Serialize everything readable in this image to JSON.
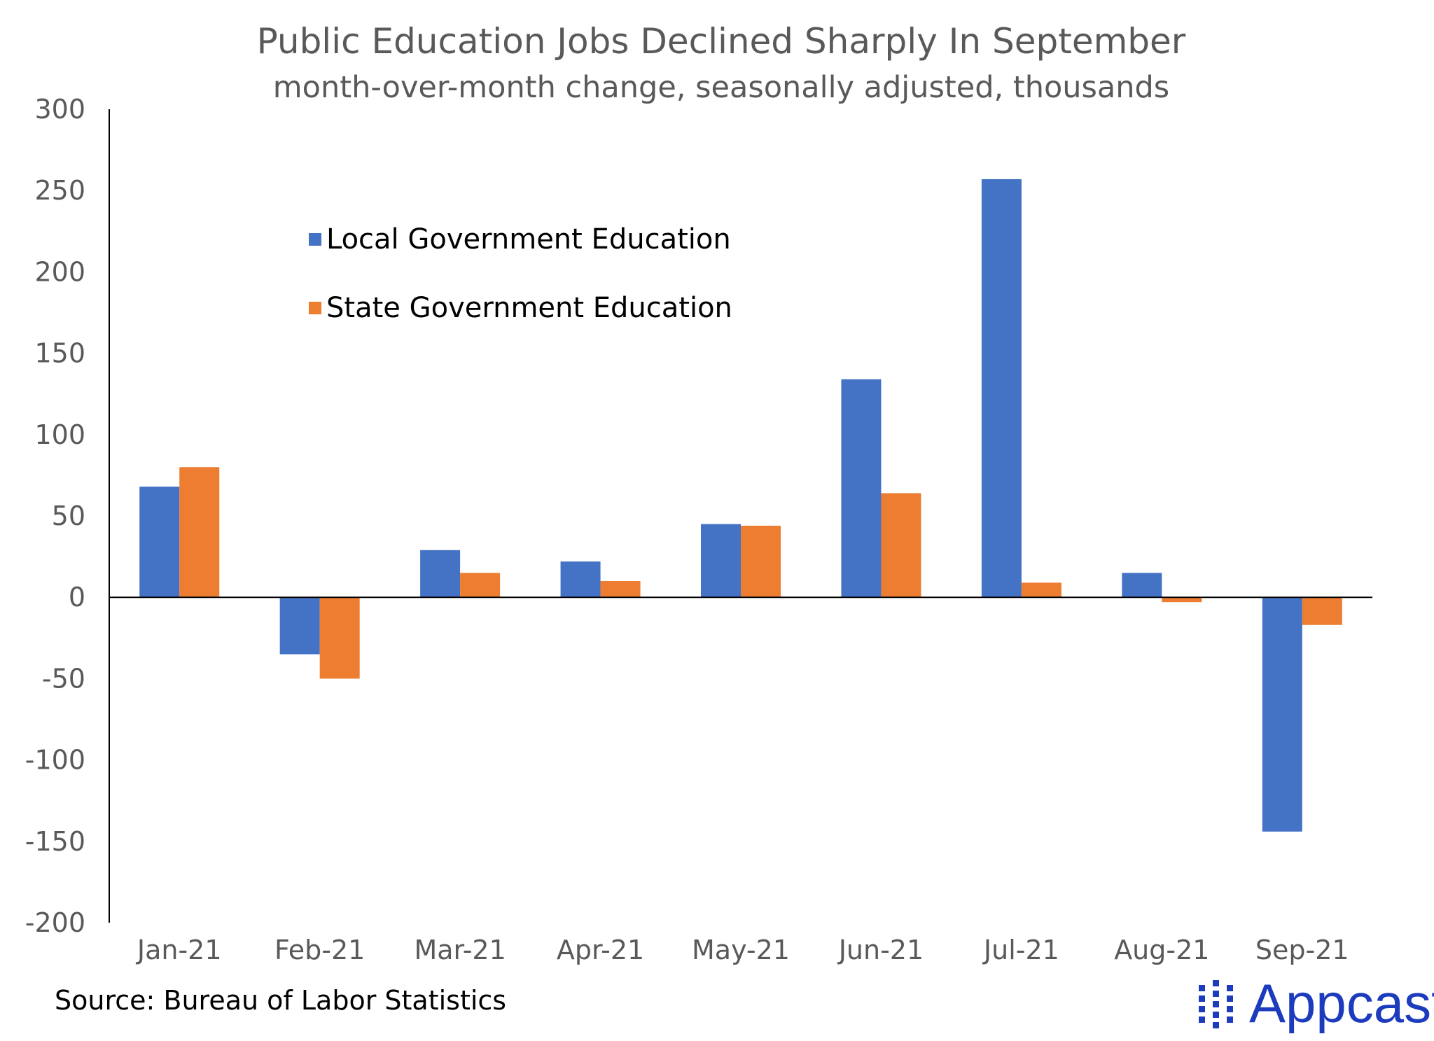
{
  "chart_data": {
    "type": "bar",
    "title": "Public Education Jobs Declined Sharply In September",
    "subtitle": "month-over-month change, seasonally adjusted, thousands",
    "categories": [
      "Jan-21",
      "Feb-21",
      "Mar-21",
      "Apr-21",
      "May-21",
      "Jun-21",
      "Jul-21",
      "Aug-21",
      "Sep-21"
    ],
    "series": [
      {
        "name": "Local Government Education",
        "color": "#4472c4",
        "values": [
          68,
          -35,
          29,
          22,
          45,
          134,
          257,
          15,
          -144
        ]
      },
      {
        "name": "State Government Education",
        "color": "#ed7d31",
        "values": [
          80,
          -50,
          15,
          10,
          44,
          64,
          9,
          -3,
          -17
        ]
      }
    ],
    "ylim": [
      -200,
      300
    ],
    "yticks": [
      "300",
      "250",
      "200",
      "150",
      "100",
      "50",
      "0",
      "-50",
      "-100",
      "-150",
      "-200"
    ],
    "ytick_values": [
      300,
      250,
      200,
      150,
      100,
      50,
      0,
      -50,
      -100,
      -150,
      -200
    ],
    "grid": false,
    "legend_position": "top-left"
  },
  "source": "Source: Bureau of Labor Statistics",
  "logo": {
    "text": "Appcast",
    "icon": "dot-grid-icon",
    "color": "#1c3bbd"
  }
}
